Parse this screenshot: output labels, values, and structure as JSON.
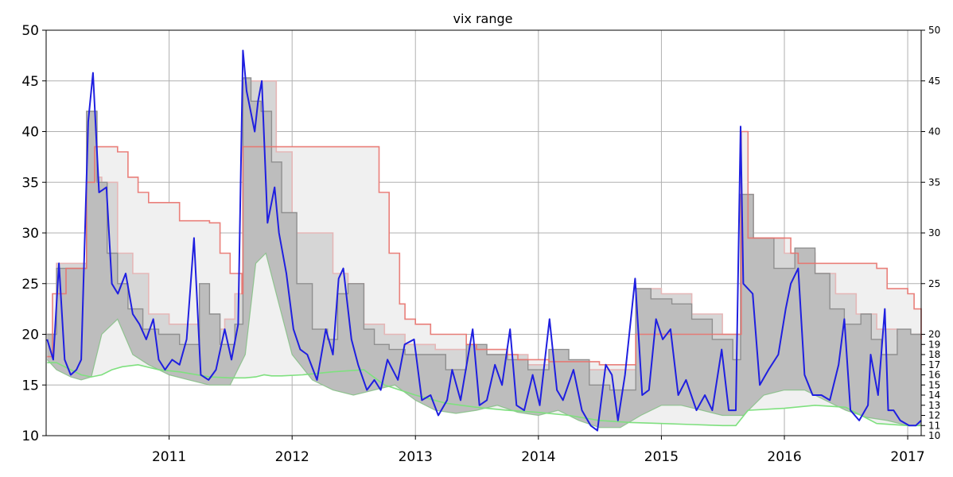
{
  "chart_data": {
    "type": "line",
    "title": "vix range",
    "xlabel": "",
    "ylabel": "",
    "x_range": [
      "2010-01-01",
      "2017-02-10"
    ],
    "ylim": [
      10,
      50
    ],
    "grid": true,
    "x_tick_labels": [
      "2011",
      "2012",
      "2013",
      "2014",
      "2015",
      "2016",
      "2017"
    ],
    "y_tick_labels_left": [
      "10",
      "15",
      "20",
      "25",
      "30",
      "35",
      "40",
      "45",
      "50"
    ],
    "y_tick_labels_right": [
      "10",
      "11",
      "12",
      "13",
      "14",
      "15",
      "16",
      "17",
      "18",
      "19",
      "20",
      "25",
      "30",
      "35",
      "40",
      "45",
      "50"
    ],
    "colors": {
      "vix_line": "#1f1fe0",
      "outer_band_fill": "#f0f0f0",
      "outer_band_edge": "#e5b7b7",
      "inner_band_fill": "#bdbdbd",
      "inner_band_edge": "#8f8f8f",
      "rolling_high": "#e8726d",
      "rolling_low": "#7fe07f",
      "grid": "#b0b0b0"
    },
    "series": [
      {
        "key": "vix",
        "x": [
          "2010-01-04",
          "2010-01-22",
          "2010-02-08",
          "2010-02-25",
          "2010-03-15",
          "2010-04-01",
          "2010-04-15",
          "2010-05-06",
          "2010-05-20",
          "2010-06-07",
          "2010-06-29",
          "2010-07-15",
          "2010-08-02",
          "2010-08-25",
          "2010-09-15",
          "2010-10-05",
          "2010-10-25",
          "2010-11-15",
          "2010-12-01",
          "2010-12-20",
          "2011-01-10",
          "2011-02-01",
          "2011-02-22",
          "2011-03-16",
          "2011-04-05",
          "2011-04-28",
          "2011-05-20",
          "2011-06-15",
          "2011-07-05",
          "2011-07-25",
          "2011-08-08",
          "2011-08-19",
          "2011-09-12",
          "2011-09-22",
          "2011-10-03",
          "2011-10-20",
          "2011-11-10",
          "2011-11-23",
          "2011-12-15",
          "2012-01-05",
          "2012-01-25",
          "2012-02-15",
          "2012-03-15",
          "2012-04-10",
          "2012-05-01",
          "2012-05-18",
          "2012-06-01",
          "2012-06-25",
          "2012-07-15",
          "2012-08-10",
          "2012-09-01",
          "2012-09-20",
          "2012-10-10",
          "2012-11-10",
          "2012-11-30",
          "2012-12-28",
          "2013-01-20",
          "2013-02-15",
          "2013-03-10",
          "2013-04-05",
          "2013-04-20",
          "2013-05-15",
          "2013-06-20",
          "2013-07-10",
          "2013-08-01",
          "2013-08-25",
          "2013-09-15",
          "2013-10-09",
          "2013-10-28",
          "2013-11-20",
          "2013-12-15",
          "2014-01-05",
          "2014-02-03",
          "2014-02-25",
          "2014-03-15",
          "2014-04-15",
          "2014-05-10",
          "2014-06-05",
          "2014-06-25",
          "2014-07-20",
          "2014-08-07",
          "2014-08-25",
          "2014-09-15",
          "2014-10-15",
          "2014-11-05",
          "2014-11-25",
          "2014-12-16",
          "2015-01-05",
          "2015-01-28",
          "2015-02-20",
          "2015-03-15",
          "2015-04-15",
          "2015-05-10",
          "2015-06-01",
          "2015-06-29",
          "2015-07-20",
          "2015-08-10",
          "2015-08-24",
          "2015-09-01",
          "2015-09-29",
          "2015-10-20",
          "2015-11-15",
          "2015-12-14",
          "2016-01-05",
          "2016-01-20",
          "2016-02-11",
          "2016-03-01",
          "2016-03-25",
          "2016-04-20",
          "2016-05-15",
          "2016-06-10",
          "2016-06-27",
          "2016-07-15",
          "2016-08-10",
          "2016-09-05",
          "2016-09-13",
          "2016-10-05",
          "2016-10-25",
          "2016-11-04",
          "2016-11-20",
          "2016-12-10",
          "2017-01-05",
          "2017-01-25",
          "2017-02-10"
        ],
        "values": [
          19.5,
          17.5,
          27.0,
          17.5,
          16.0,
          16.5,
          17.5,
          41.0,
          45.8,
          34.0,
          34.5,
          25.0,
          24.0,
          26.0,
          22.0,
          21.0,
          19.5,
          21.5,
          17.5,
          16.5,
          17.5,
          17.0,
          19.5,
          29.5,
          16.0,
          15.5,
          16.5,
          20.5,
          17.5,
          21.0,
          48.0,
          44.0,
          40.0,
          43.0,
          45.0,
          31.0,
          34.5,
          30.0,
          26.0,
          20.5,
          18.5,
          18.0,
          15.5,
          20.5,
          18.0,
          25.5,
          26.5,
          19.5,
          17.0,
          14.5,
          15.5,
          14.5,
          17.5,
          15.5,
          19.0,
          19.5,
          13.5,
          14.0,
          12.0,
          13.5,
          16.5,
          13.5,
          20.5,
          13.0,
          13.5,
          17.0,
          15.0,
          20.5,
          13.0,
          12.5,
          16.0,
          13.0,
          21.5,
          14.5,
          13.5,
          16.5,
          12.5,
          11.0,
          10.5,
          17.0,
          16.0,
          11.5,
          16.0,
          25.5,
          14.0,
          14.5,
          21.5,
          19.5,
          20.5,
          14.0,
          15.5,
          12.5,
          14.0,
          12.5,
          18.5,
          12.5,
          12.5,
          40.5,
          25.0,
          24.0,
          15.0,
          16.5,
          18.0,
          22.5,
          25.0,
          26.5,
          16.0,
          14.0,
          14.0,
          13.5,
          17.0,
          21.5,
          12.5,
          11.5,
          13.0,
          18.0,
          14.0,
          22.5,
          12.5,
          12.5,
          11.5,
          11.0,
          11.0,
          11.5
        ]
      },
      {
        "key": "rolling_high",
        "x": [
          "2010-01-04",
          "2010-01-20",
          "2010-03-01",
          "2010-05-01",
          "2010-05-25",
          "2010-07-01",
          "2010-08-01",
          "2010-09-01",
          "2010-10-01",
          "2010-11-01",
          "2011-02-01",
          "2011-03-15",
          "2011-05-01",
          "2011-06-01",
          "2011-07-01",
          "2011-08-05",
          "2011-08-08",
          "2011-10-05",
          "2011-11-01",
          "2012-01-01",
          "2012-06-01",
          "2012-08-01",
          "2012-09-15",
          "2012-10-15",
          "2012-11-15",
          "2012-12-01",
          "2013-01-01",
          "2013-02-15",
          "2013-05-01",
          "2013-06-01",
          "2013-07-01",
          "2013-08-01",
          "2013-10-01",
          "2013-11-01",
          "2014-01-01",
          "2014-02-01",
          "2014-05-01",
          "2014-06-01",
          "2014-07-01",
          "2014-10-15",
          "2014-10-17",
          "2015-01-01",
          "2015-02-01",
          "2015-04-01",
          "2015-06-01",
          "2015-08-24",
          "2015-08-26",
          "2015-09-15",
          "2016-01-20",
          "2016-02-11",
          "2016-03-01",
          "2016-06-15",
          "2016-09-01",
          "2016-10-01",
          "2016-11-01",
          "2017-01-01",
          "2017-01-20",
          "2017-02-10"
        ],
        "values": [
          17.8,
          24.0,
          26.5,
          35.0,
          38.5,
          38.5,
          38.0,
          35.5,
          34.0,
          33.0,
          31.2,
          31.2,
          31.0,
          28.0,
          26.0,
          24.0,
          38.5,
          38.5,
          38.5,
          38.5,
          38.5,
          38.5,
          34.0,
          28.0,
          23.0,
          21.5,
          21.0,
          20.0,
          20.0,
          19.0,
          18.5,
          18.5,
          18.0,
          17.5,
          17.5,
          17.3,
          17.3,
          17.3,
          17.0,
          17.0,
          20.0,
          20.0,
          20.0,
          20.0,
          20.0,
          20.0,
          40.0,
          29.5,
          28.0,
          27.0,
          27.0,
          27.0,
          27.0,
          26.5,
          24.5,
          24.0,
          22.5,
          19.5
        ]
      },
      {
        "key": "rolling_low",
        "x": [
          "2010-01-04",
          "2010-02-01",
          "2010-03-15",
          "2010-04-15",
          "2010-05-15",
          "2010-06-15",
          "2010-07-15",
          "2010-08-15",
          "2010-10-01",
          "2010-12-01",
          "2011-02-01",
          "2011-05-01",
          "2011-07-01",
          "2011-08-15",
          "2011-09-15",
          "2011-10-10",
          "2011-11-01",
          "2011-12-01",
          "2012-02-01",
          "2012-05-01",
          "2012-08-01",
          "2012-10-01",
          "2013-01-01",
          "2013-04-01",
          "2013-07-01",
          "2013-10-01",
          "2014-01-01",
          "2014-04-01",
          "2014-07-01",
          "2014-10-01",
          "2015-01-01",
          "2015-04-01",
          "2015-07-01",
          "2015-08-10",
          "2015-09-15",
          "2016-01-01",
          "2016-04-01",
          "2016-07-01",
          "2016-10-01",
          "2017-01-01",
          "2017-02-10"
        ],
        "values": [
          17.2,
          17.2,
          16.5,
          16.0,
          15.8,
          16.0,
          16.5,
          16.8,
          17.0,
          16.5,
          16.3,
          15.8,
          15.7,
          15.7,
          15.8,
          16.0,
          15.9,
          15.9,
          16.0,
          16.3,
          16.5,
          15.0,
          14.0,
          13.2,
          12.8,
          12.5,
          12.3,
          12.0,
          11.5,
          11.3,
          11.2,
          11.1,
          11.0,
          11.0,
          12.5,
          12.7,
          13.0,
          12.8,
          11.2,
          11.0,
          11.0
        ]
      },
      {
        "key": "outer_band_top",
        "x": [
          "2010-01-04",
          "2010-02-01",
          "2010-05-01",
          "2010-06-15",
          "2010-08-01",
          "2010-09-15",
          "2010-11-01",
          "2011-01-01",
          "2011-05-01",
          "2011-06-15",
          "2011-07-15",
          "2011-08-08",
          "2011-10-01",
          "2011-11-15",
          "2012-01-01",
          "2012-05-01",
          "2012-06-15",
          "2012-08-01",
          "2012-10-01",
          "2012-12-01",
          "2013-03-01",
          "2013-06-01",
          "2013-09-01",
          "2013-12-01",
          "2014-03-01",
          "2014-06-01",
          "2014-09-01",
          "2014-10-17",
          "2015-01-01",
          "2015-04-01",
          "2015-07-01",
          "2015-08-24",
          "2015-10-01",
          "2016-01-01",
          "2016-02-11",
          "2016-04-01",
          "2016-06-01",
          "2016-08-01",
          "2016-10-01",
          "2016-12-01",
          "2017-02-10"
        ],
        "values": [
          20.0,
          27.0,
          35.5,
          35.0,
          28.0,
          26.0,
          22.0,
          21.0,
          20.5,
          21.5,
          24.0,
          45.0,
          45.0,
          38.0,
          30.0,
          26.0,
          25.0,
          21.0,
          20.0,
          19.0,
          18.5,
          18.0,
          18.0,
          17.0,
          17.0,
          16.5,
          16.5,
          24.5,
          24.0,
          22.0,
          20.0,
          33.8,
          29.5,
          28.0,
          28.0,
          26.0,
          24.0,
          22.0,
          20.5,
          20.0,
          18.0
        ]
      },
      {
        "key": "inner_band_top",
        "x": [
          "2010-01-04",
          "2010-02-01",
          "2010-05-01",
          "2010-06-01",
          "2010-07-01",
          "2010-08-01",
          "2010-09-01",
          "2010-10-15",
          "2010-12-01",
          "2011-02-01",
          "2011-04-01",
          "2011-05-01",
          "2011-06-01",
          "2011-07-15",
          "2011-08-08",
          "2011-09-01",
          "2011-10-01",
          "2011-11-01",
          "2011-12-01",
          "2012-01-15",
          "2012-03-01",
          "2012-04-15",
          "2012-05-15",
          "2012-06-15",
          "2012-08-01",
          "2012-09-01",
          "2012-10-15",
          "2012-12-01",
          "2013-02-01",
          "2013-04-01",
          "2013-06-01",
          "2013-08-01",
          "2013-10-01",
          "2013-12-01",
          "2014-02-01",
          "2014-04-01",
          "2014-06-01",
          "2014-08-01",
          "2014-10-01",
          "2014-10-17",
          "2014-12-01",
          "2015-02-01",
          "2015-04-01",
          "2015-06-01",
          "2015-08-01",
          "2015-08-24",
          "2015-10-01",
          "2015-12-01",
          "2016-02-01",
          "2016-02-11",
          "2016-04-01",
          "2016-05-15",
          "2016-06-27",
          "2016-08-15",
          "2016-09-15",
          "2016-10-15",
          "2016-12-01",
          "2017-01-10",
          "2017-02-10"
        ],
        "values": [
          20.0,
          26.5,
          42.0,
          35.0,
          28.0,
          25.0,
          22.5,
          20.5,
          20.0,
          19.0,
          25.0,
          22.0,
          19.0,
          21.0,
          45.3,
          43.0,
          42.0,
          37.0,
          32.0,
          25.0,
          20.5,
          19.5,
          24.0,
          25.0,
          20.5,
          19.0,
          18.5,
          18.0,
          18.0,
          16.5,
          19.0,
          18.0,
          17.5,
          16.5,
          18.5,
          17.5,
          15.0,
          14.5,
          14.5,
          24.5,
          23.5,
          23.0,
          21.5,
          19.5,
          17.5,
          33.8,
          29.5,
          26.5,
          28.5,
          28.5,
          26.0,
          22.5,
          21.0,
          22.0,
          19.5,
          18.0,
          20.5,
          20.0,
          14.0
        ]
      },
      {
        "key": "inner_band_bottom",
        "x": [
          "2010-01-04",
          "2010-02-01",
          "2010-03-15",
          "2010-04-15",
          "2010-05-15",
          "2010-06-15",
          "2010-08-01",
          "2010-09-15",
          "2010-11-01",
          "2011-01-01",
          "2011-03-01",
          "2011-05-01",
          "2011-07-01",
          "2011-08-15",
          "2011-09-15",
          "2011-10-15",
          "2011-11-15",
          "2012-01-01",
          "2012-03-01",
          "2012-05-01",
          "2012-07-01",
          "2012-09-01",
          "2012-11-01",
          "2013-01-01",
          "2013-03-01",
          "2013-05-01",
          "2013-07-01",
          "2013-09-01",
          "2013-11-01",
          "2014-01-01",
          "2014-03-01",
          "2014-05-01",
          "2014-07-01",
          "2014-09-01",
          "2014-11-01",
          "2015-01-01",
          "2015-03-01",
          "2015-05-01",
          "2015-07-01",
          "2015-09-01",
          "2015-11-01",
          "2016-01-01",
          "2016-03-01",
          "2016-05-01",
          "2016-07-01",
          "2016-09-01",
          "2016-11-01",
          "2017-01-01",
          "2017-02-10"
        ],
        "values": [
          17.5,
          16.5,
          15.8,
          15.5,
          15.8,
          20.0,
          21.5,
          18.0,
          17.0,
          16.0,
          15.5,
          15.0,
          15.0,
          18.0,
          27.0,
          28.0,
          24.0,
          18.0,
          15.5,
          14.5,
          14.0,
          14.5,
          15.0,
          13.5,
          12.5,
          12.2,
          12.5,
          13.0,
          12.3,
          12.0,
          12.5,
          11.5,
          10.8,
          10.8,
          12.0,
          13.0,
          13.0,
          12.5,
          12.0,
          12.0,
          14.0,
          14.5,
          14.5,
          13.5,
          12.5,
          11.8,
          11.5,
          11.0,
          11.0
        ]
      }
    ]
  }
}
